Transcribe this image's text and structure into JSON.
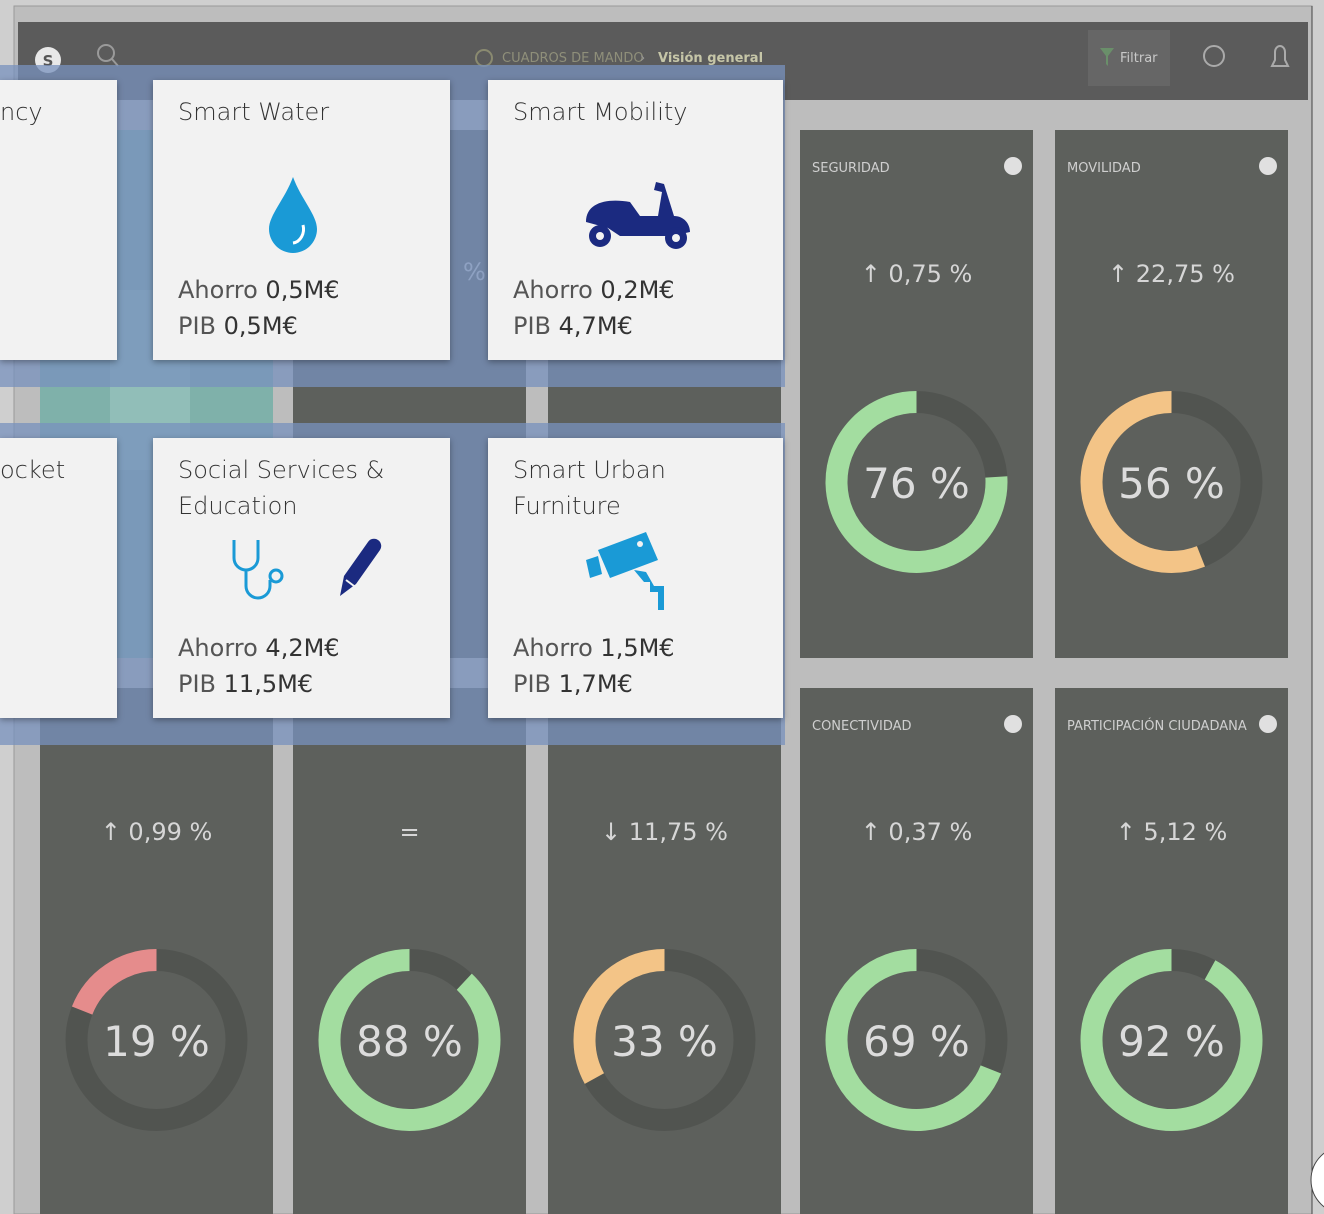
{
  "header": {
    "avatar": "S",
    "breadcrumb_section": "CUADROS DE MANDO",
    "breadcrumb_separator": "›",
    "breadcrumb_page": "Visión general",
    "filter_button": "Filtrar"
  },
  "tiles": [
    {
      "fragment": "%"
    },
    {
      "title": "SEGURIDAD",
      "change": "↑ 0,75 %",
      "value": 76,
      "value_label": "76 %",
      "color": "#a3dda0"
    },
    {
      "title": "MOVILIDAD",
      "change": "↑ 22,75 %",
      "value": 56,
      "value_label": "56 %",
      "color": "#f3c487"
    },
    {
      "change": "↑ 0,99 %",
      "value": 19,
      "value_label": "19 %",
      "color": "#e58c8c"
    },
    {
      "change": "=",
      "value": 88,
      "value_label": "88 %",
      "color": "#a3dda0"
    },
    {
      "change": "↓ 11,75 %",
      "value": 33,
      "value_label": "33 %",
      "color": "#f3c487"
    },
    {
      "title": "CONECTIVIDAD",
      "change": "↑ 0,37 %",
      "value": 69,
      "value_label": "69 %",
      "color": "#a3dda0"
    },
    {
      "title": "PARTICIPACIÓN CIUDADANA",
      "change": "↑ 5,12 %",
      "value": 92,
      "value_label": "92 %",
      "color": "#a3dda0"
    }
  ],
  "cards": [
    {
      "title": "ncy"
    },
    {
      "title": "Smart Water",
      "savings_label": "Ahorro",
      "savings": "0,5M€",
      "gdp_label": "PIB",
      "gdp": "0,5M€"
    },
    {
      "title": "Smart Mobility",
      "savings_label": "Ahorro",
      "savings": "0,2M€",
      "gdp_label": "PIB",
      "gdp": "4,7M€"
    },
    {
      "title": "ocket"
    },
    {
      "title": "Social Services & Education",
      "savings_label": "Ahorro",
      "savings": "4,2M€",
      "gdp_label": "PIB",
      "gdp": "11,5M€"
    },
    {
      "title": "Smart Urban Furniture",
      "savings_label": "Ahorro",
      "savings": "1,5M€",
      "gdp_label": "PIB",
      "gdp": "1,7M€"
    }
  ]
}
